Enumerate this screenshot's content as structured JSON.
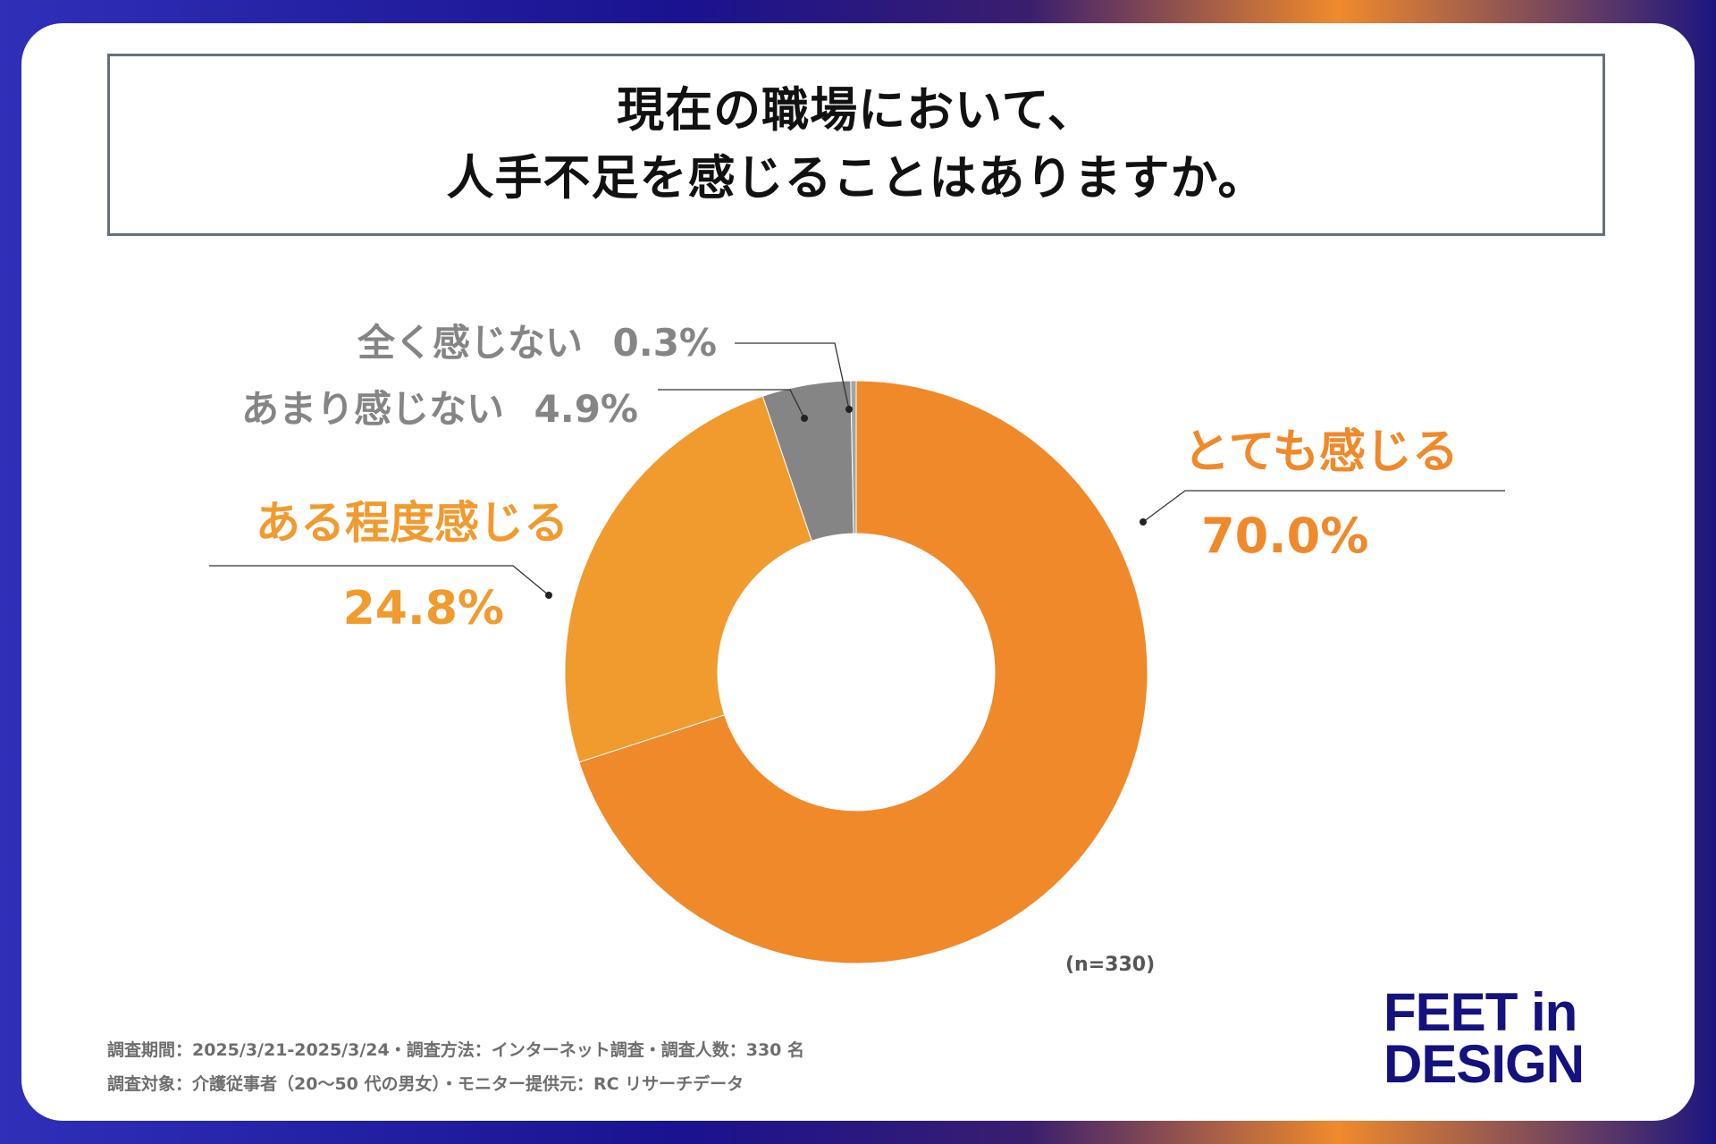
{
  "title": {
    "line1": "現在の職場において、",
    "line2": "人手不足を感じることはありますか。"
  },
  "chart_data": {
    "type": "pie",
    "variant": "donut",
    "title": "現在の職場において、人手不足を感じることはありますか。",
    "start": "12 o'clock, clockwise",
    "slices": [
      {
        "label": "とても感じる",
        "value": 70.0,
        "value_text": "70.0%",
        "color": "#f0892a"
      },
      {
        "label": "ある程度感じる",
        "value": 24.8,
        "value_text": "24.8%",
        "color": "#f19a2e"
      },
      {
        "label": "あまり感じない",
        "value": 4.9,
        "value_text": "4.9%",
        "color": "#858585"
      },
      {
        "label": "全く感じない",
        "value": 0.3,
        "value_text": "0.3%",
        "color": "#a3a3a3"
      }
    ],
    "sample_size": "(n=330)"
  },
  "colors": {
    "accent_orange": "#f0892a",
    "label_orange": "#f19a2e",
    "label_gray": "#858585",
    "logo_navy": "#14127f"
  },
  "footnotes": [
    "調査期間：2025/3/21-2025/3/24・調査方法：インターネット調査・調査人数：330 名",
    "調査対象：介護従事者（20〜50 代の男女）・モニター提供元：RC リサーチデータ"
  ],
  "logo": {
    "line1": "FEET in",
    "line2": "DESIGN"
  }
}
